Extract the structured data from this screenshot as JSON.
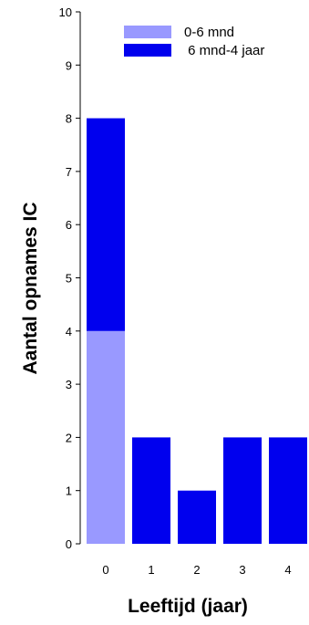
{
  "chart_data": {
    "type": "bar",
    "stacked": true,
    "categories": [
      "0",
      "1",
      "2",
      "3",
      "4"
    ],
    "series": [
      {
        "name": "0-6 mnd",
        "values": [
          4,
          0,
          0,
          0,
          0
        ],
        "color": "#9999ff"
      },
      {
        "name": " 6 mnd-4 jaar",
        "values": [
          4,
          2,
          1,
          2,
          2
        ],
        "color": "#0000ee"
      }
    ],
    "xlabel": "Leeftijd (jaar)",
    "ylabel": "Aantal opnames IC",
    "ylim": [
      0,
      10
    ],
    "yticks": [
      "0",
      "1",
      "2",
      "3",
      "4",
      "5",
      "6",
      "7",
      "8",
      "9",
      "10"
    ],
    "grid": false,
    "legend": "top-right"
  }
}
